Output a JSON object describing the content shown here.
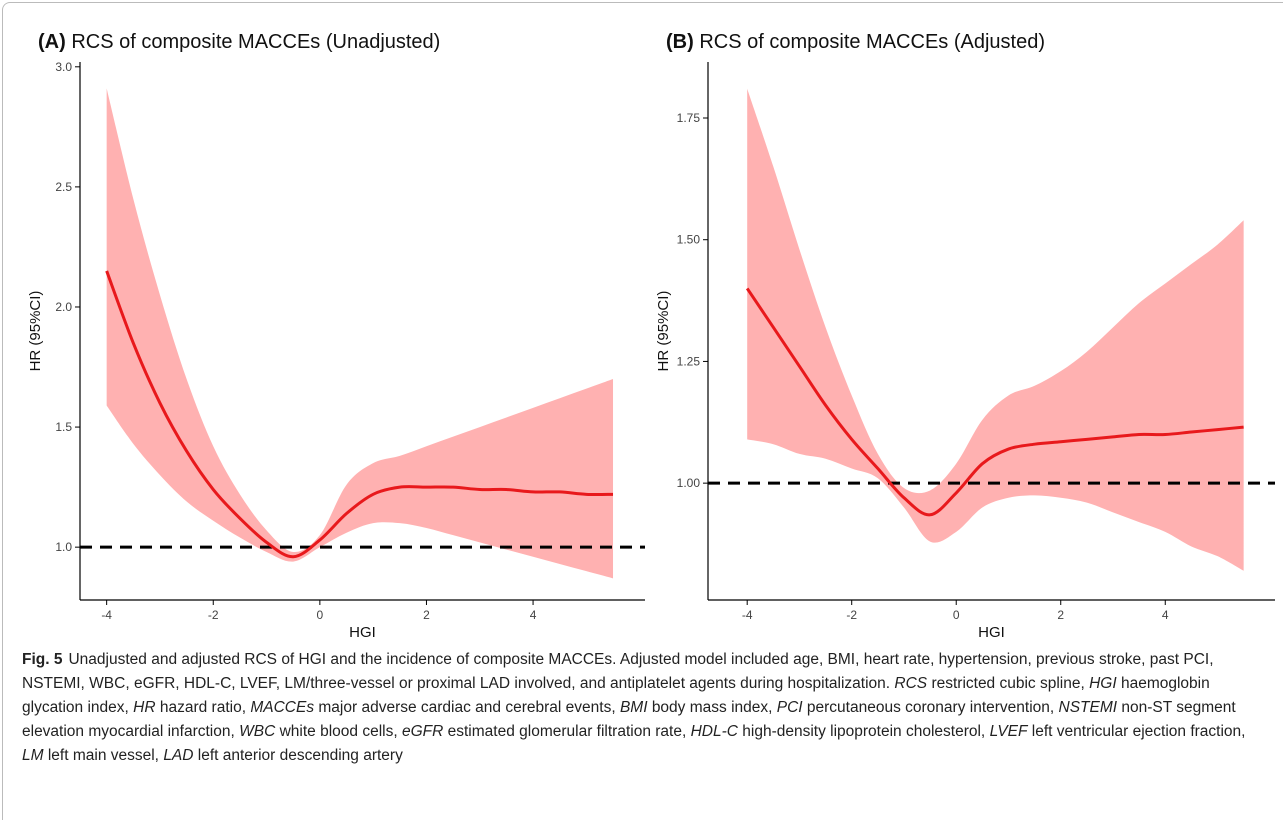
{
  "chart_data": [
    {
      "type": "line",
      "panel_label": "(A)",
      "title": "RCS of composite MACCEs (Unadjusted)",
      "x_label": "HGI",
      "y_label": "HR (95%CI)",
      "x": [
        -4,
        -3.5,
        -3,
        -2.5,
        -2,
        -1.5,
        -1,
        -0.5,
        0,
        0.5,
        1,
        1.5,
        2,
        2.5,
        3,
        3.5,
        4,
        4.5,
        5,
        5.5
      ],
      "values": [
        2.15,
        1.85,
        1.6,
        1.4,
        1.24,
        1.12,
        1.02,
        0.96,
        1.03,
        1.14,
        1.22,
        1.25,
        1.25,
        1.25,
        1.24,
        1.24,
        1.23,
        1.23,
        1.22,
        1.22
      ],
      "lower": [
        1.59,
        1.43,
        1.3,
        1.19,
        1.11,
        1.04,
        0.98,
        0.94,
        1.0,
        1.06,
        1.1,
        1.1,
        1.08,
        1.05,
        1.02,
        0.99,
        0.96,
        0.93,
        0.9,
        0.87
      ],
      "upper": [
        2.91,
        2.45,
        2.05,
        1.7,
        1.42,
        1.22,
        1.07,
        0.98,
        1.05,
        1.26,
        1.35,
        1.38,
        1.42,
        1.46,
        1.5,
        1.54,
        1.58,
        1.62,
        1.66,
        1.7
      ],
      "color": "#e8191c",
      "band_color": "#ffb1b1",
      "reference_line": 1,
      "xlim": [
        -4.5,
        6.1
      ],
      "ylim": [
        0.78,
        3.02
      ],
      "xticks": [
        -4,
        -2,
        0,
        2,
        4
      ],
      "yticks": [
        {
          "value": 1,
          "label": "1.0"
        },
        1.5,
        {
          "value": 2,
          "label": "2.0"
        },
        2.5,
        {
          "value": 3,
          "label": "3.0"
        }
      ]
    },
    {
      "type": "line",
      "panel_label": "(B)",
      "title": "RCS of composite MACCEs (Adjusted)",
      "x_label": "HGI",
      "y_label": "HR (95%CI)",
      "x": [
        -4,
        -3.5,
        -3,
        -2.5,
        -2,
        -1.5,
        -1,
        -0.5,
        0,
        0.5,
        1,
        1.5,
        2,
        2.5,
        3,
        3.5,
        4,
        4.5,
        5,
        5.5
      ],
      "values": [
        1.4,
        1.32,
        1.24,
        1.16,
        1.09,
        1.03,
        0.97,
        0.935,
        0.98,
        1.04,
        1.07,
        1.08,
        1.085,
        1.09,
        1.095,
        1.1,
        1.1,
        1.105,
        1.11,
        1.115
      ],
      "lower": [
        1.09,
        1.08,
        1.06,
        1.05,
        1.03,
        1.01,
        0.95,
        0.88,
        0.9,
        0.95,
        0.97,
        0.975,
        0.97,
        0.96,
        0.94,
        0.92,
        0.9,
        0.87,
        0.85,
        0.82
      ],
      "upper": [
        1.81,
        1.65,
        1.48,
        1.32,
        1.18,
        1.06,
        0.99,
        0.985,
        1.04,
        1.13,
        1.18,
        1.2,
        1.23,
        1.27,
        1.32,
        1.37,
        1.41,
        1.45,
        1.49,
        1.54
      ],
      "color": "#e8191c",
      "band_color": "#ffb1b1",
      "reference_line": 1,
      "xlim": [
        -4.75,
        6.1
      ],
      "ylim": [
        0.76,
        1.865
      ],
      "xticks": [
        -4,
        -2,
        0,
        2,
        4
      ],
      "yticks": [
        {
          "value": 1,
          "label": "1.00"
        },
        {
          "value": 1.25,
          "label": "1.25"
        },
        {
          "value": 1.5,
          "label": "1.50"
        },
        {
          "value": 1.75,
          "label": "1.75"
        }
      ]
    }
  ],
  "caption": {
    "label": "Fig. 5",
    "text": "Unadjusted and adjusted RCS of HGI and the incidence of composite MACCEs. Adjusted model included age, BMI, heart rate, hypertension, previous stroke, past PCI, NSTEMI, WBC, eGFR, HDL-C, LVEF, LM/three-vessel or proximal LAD involved, and antiplatelet agents during hospitalization.",
    "abbreviations": [
      {
        "term": "RCS",
        "definition": "restricted cubic spline,"
      },
      {
        "term": "HGI",
        "definition": "haemoglobin glycation index,"
      },
      {
        "term": "HR",
        "definition": "hazard ratio,"
      },
      {
        "term": "MACCEs",
        "definition": "major adverse cardiac and cerebral events,"
      },
      {
        "term": "BMI",
        "definition": "body mass index,"
      },
      {
        "term": "PCI",
        "definition": "percutaneous coronary intervention,"
      },
      {
        "term": "NSTEMI",
        "definition": "non-ST segment elevation myocardial infarction,"
      },
      {
        "term": "WBC",
        "definition": "white blood cells,"
      },
      {
        "term": "eGFR",
        "definition": "estimated glomerular filtration rate,"
      },
      {
        "term": "HDL-C",
        "definition": "high-density lipoprotein cholesterol,"
      },
      {
        "term": "LVEF",
        "definition": "left ventricular ejection fraction,"
      },
      {
        "term": "LM",
        "definition": "left main vessel,"
      },
      {
        "term": "LAD",
        "definition": "left anterior descending artery"
      }
    ]
  }
}
